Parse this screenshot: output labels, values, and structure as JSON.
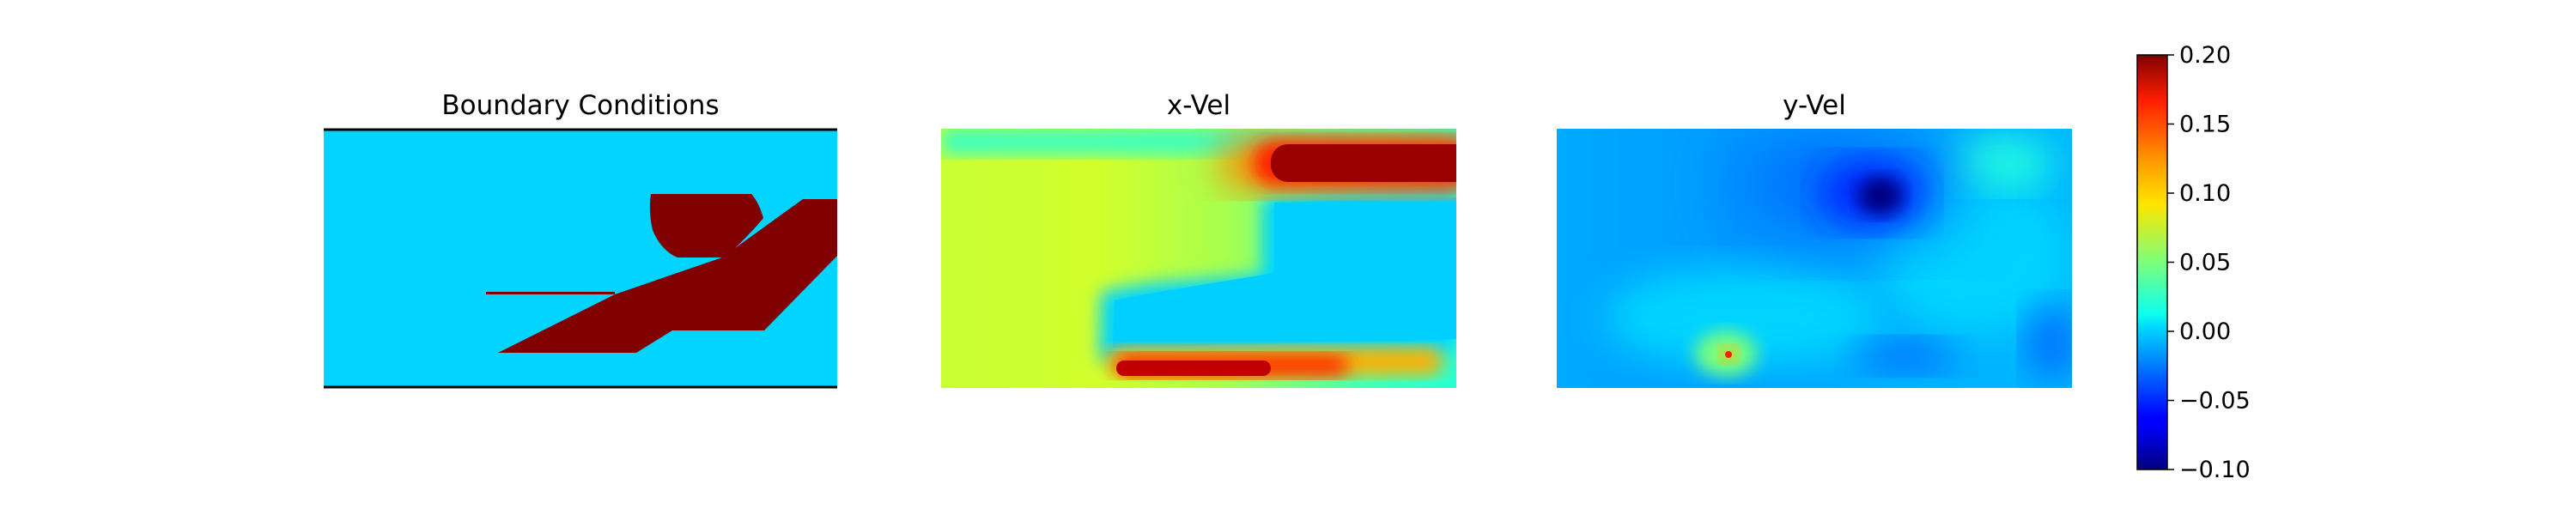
{
  "chart_data": [
    {
      "type": "heatmap",
      "title": "Boundary Conditions",
      "description_values": "binary mask: 0 = fluid (light blue), 1 = solid obstacle (dark red)",
      "grid": false,
      "axes_visible": false
    },
    {
      "type": "heatmap",
      "title": "x-Vel",
      "grid": false,
      "axes_visible": false
    },
    {
      "type": "heatmap",
      "title": "y-Vel",
      "grid": false,
      "axes_visible": false
    }
  ],
  "colorbar": {
    "colormap": "jet",
    "range": [
      -0.1,
      0.2
    ],
    "ticks": [
      0.2,
      0.15,
      0.1,
      0.05,
      0.0,
      -0.05,
      -0.1
    ],
    "tick_labels": [
      "0.20",
      "0.15",
      "0.10",
      "0.05",
      "0.00",
      "−0.05",
      "−0.10"
    ],
    "placement": "right"
  },
  "colors": {
    "fluid": "#00d4ff",
    "solid": "#800000",
    "axes_border": "#000000"
  }
}
